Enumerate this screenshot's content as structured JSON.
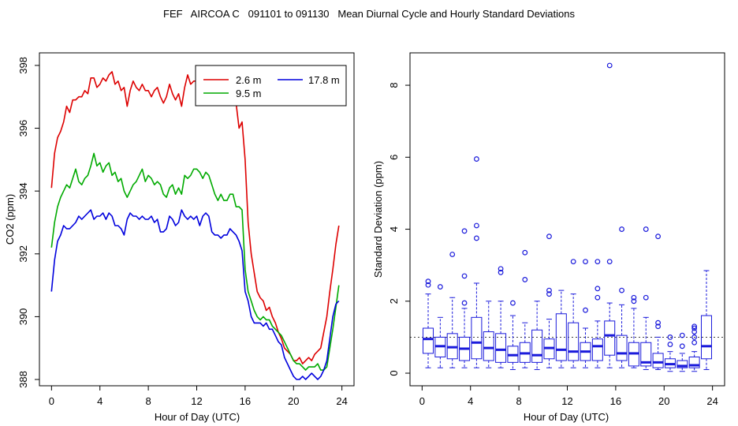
{
  "title": "FEF   AIRCOA C   091101 to 091130   Mean Diurnal Cycle and Hourly Standard Deviations",
  "chart_data": [
    {
      "type": "line",
      "xlabel": "Hour of Day (UTC)",
      "ylabel": "CO2 (ppm)",
      "xlim": [
        -1,
        25
      ],
      "ylim": [
        387.8,
        398.4
      ],
      "xticks": [
        0,
        4,
        8,
        12,
        16,
        20,
        24
      ],
      "yticks": [
        388,
        390,
        392,
        394,
        396,
        398
      ],
      "legend": {
        "position": "top-right",
        "entries": [
          "2.6 m",
          "9.5 m",
          "17.8 m"
        ]
      },
      "series": [
        {
          "name": "2.6 m",
          "color": "#dd0000",
          "x": [
            0,
            0.25,
            0.5,
            0.75,
            1,
            1.25,
            1.5,
            1.75,
            2,
            2.25,
            2.5,
            2.75,
            3,
            3.25,
            3.5,
            3.75,
            4,
            4.25,
            4.5,
            4.75,
            5,
            5.25,
            5.5,
            5.75,
            6,
            6.25,
            6.5,
            6.75,
            7,
            7.25,
            7.5,
            7.75,
            8,
            8.25,
            8.5,
            8.75,
            9,
            9.25,
            9.5,
            9.75,
            10,
            10.25,
            10.5,
            10.75,
            11,
            11.25,
            11.5,
            11.75,
            12,
            12.25,
            12.5,
            12.75,
            13,
            13.25,
            13.5,
            13.75,
            14,
            14.25,
            14.5,
            14.75,
            15,
            15.25,
            15.5,
            15.75,
            16,
            16.25,
            16.5,
            16.75,
            17,
            17.25,
            17.5,
            17.75,
            18,
            18.25,
            18.5,
            18.75,
            19,
            19.25,
            19.5,
            19.75,
            20,
            20.25,
            20.5,
            20.75,
            21,
            21.25,
            21.5,
            21.75,
            22,
            22.25,
            22.5,
            22.75,
            23,
            23.25,
            23.5,
            23.75
          ],
          "values": [
            394.1,
            395.2,
            395.7,
            395.9,
            396.2,
            396.7,
            396.5,
            396.9,
            396.9,
            397.0,
            397.0,
            397.2,
            397.1,
            397.6,
            397.6,
            397.3,
            397.4,
            397.6,
            397.5,
            397.7,
            397.8,
            397.4,
            397.5,
            397.2,
            397.3,
            396.7,
            397.2,
            397.5,
            397.3,
            397.2,
            397.4,
            397.2,
            397.2,
            397.0,
            397.2,
            397.3,
            397.0,
            396.8,
            397.0,
            397.4,
            397.1,
            396.9,
            397.1,
            396.7,
            397.3,
            397.7,
            397.4,
            397.5,
            397.5,
            397.7,
            397.6,
            397.7,
            397.6,
            397.3,
            397.0,
            396.8,
            397.0,
            396.8,
            396.9,
            397.2,
            397.1,
            396.8,
            396.0,
            396.2,
            395.0,
            393.0,
            392.0,
            391.4,
            390.8,
            390.6,
            390.5,
            390.2,
            390.3,
            390.0,
            389.8,
            389.5,
            389.3,
            389.0,
            388.9,
            388.8,
            388.6,
            388.6,
            388.7,
            388.5,
            388.6,
            388.7,
            388.6,
            388.8,
            388.9,
            389.0,
            389.5,
            390.0,
            390.8,
            391.5,
            392.3,
            392.9
          ]
        },
        {
          "name": "9.5 m",
          "color": "#00aa00",
          "x": [
            0,
            0.25,
            0.5,
            0.75,
            1,
            1.25,
            1.5,
            1.75,
            2,
            2.25,
            2.5,
            2.75,
            3,
            3.25,
            3.5,
            3.75,
            4,
            4.25,
            4.5,
            4.75,
            5,
            5.25,
            5.5,
            5.75,
            6,
            6.25,
            6.5,
            6.75,
            7,
            7.25,
            7.5,
            7.75,
            8,
            8.25,
            8.5,
            8.75,
            9,
            9.25,
            9.5,
            9.75,
            10,
            10.25,
            10.5,
            10.75,
            11,
            11.25,
            11.5,
            11.75,
            12,
            12.25,
            12.5,
            12.75,
            13,
            13.25,
            13.5,
            13.75,
            14,
            14.25,
            14.5,
            14.75,
            15,
            15.25,
            15.5,
            15.75,
            16,
            16.25,
            16.5,
            16.75,
            17,
            17.25,
            17.5,
            17.75,
            18,
            18.25,
            18.5,
            18.75,
            19,
            19.25,
            19.5,
            19.75,
            20,
            20.25,
            20.5,
            20.75,
            21,
            21.25,
            21.5,
            21.75,
            22,
            22.25,
            22.5,
            22.75,
            23,
            23.25,
            23.5,
            23.75
          ],
          "values": [
            392.2,
            393.0,
            393.5,
            393.8,
            394.0,
            394.2,
            394.1,
            394.4,
            394.7,
            394.3,
            394.2,
            394.4,
            394.5,
            394.8,
            395.2,
            394.8,
            394.9,
            394.6,
            394.8,
            394.9,
            394.5,
            394.6,
            394.3,
            394.4,
            394.0,
            393.8,
            394.0,
            394.2,
            394.3,
            394.5,
            394.7,
            394.3,
            394.5,
            394.4,
            394.2,
            394.3,
            394.2,
            393.9,
            393.8,
            394.1,
            394.2,
            393.9,
            394.1,
            393.9,
            394.5,
            394.4,
            394.5,
            394.7,
            394.7,
            394.6,
            394.4,
            394.6,
            394.5,
            394.2,
            393.9,
            393.7,
            393.9,
            393.7,
            393.7,
            393.9,
            393.9,
            393.5,
            393.5,
            393.4,
            391.5,
            390.8,
            390.5,
            390.2,
            390.0,
            389.9,
            390.0,
            389.9,
            389.9,
            389.7,
            389.6,
            389.5,
            389.4,
            389.2,
            389.0,
            388.8,
            388.6,
            388.5,
            388.5,
            388.4,
            388.3,
            388.4,
            388.4,
            388.4,
            388.5,
            388.3,
            388.3,
            388.4,
            389.0,
            389.6,
            390.3,
            391.0
          ]
        },
        {
          "name": "17.8 m",
          "color": "#0000dd",
          "x": [
            0,
            0.25,
            0.5,
            0.75,
            1,
            1.25,
            1.5,
            1.75,
            2,
            2.25,
            2.5,
            2.75,
            3,
            3.25,
            3.5,
            3.75,
            4,
            4.25,
            4.5,
            4.75,
            5,
            5.25,
            5.5,
            5.75,
            6,
            6.25,
            6.5,
            6.75,
            7,
            7.25,
            7.5,
            7.75,
            8,
            8.25,
            8.5,
            8.75,
            9,
            9.25,
            9.5,
            9.75,
            10,
            10.25,
            10.5,
            10.75,
            11,
            11.25,
            11.5,
            11.75,
            12,
            12.25,
            12.5,
            12.75,
            13,
            13.25,
            13.5,
            13.75,
            14,
            14.25,
            14.5,
            14.75,
            15,
            15.25,
            15.5,
            15.75,
            16,
            16.25,
            16.5,
            16.75,
            17,
            17.25,
            17.5,
            17.75,
            18,
            18.25,
            18.5,
            18.75,
            19,
            19.25,
            19.5,
            19.75,
            20,
            20.25,
            20.5,
            20.75,
            21,
            21.25,
            21.5,
            21.75,
            22,
            22.25,
            22.5,
            22.75,
            23,
            23.25,
            23.5,
            23.75
          ],
          "values": [
            390.8,
            391.8,
            392.4,
            392.6,
            392.9,
            392.8,
            392.8,
            392.9,
            393.0,
            393.2,
            393.1,
            393.2,
            393.3,
            393.4,
            393.1,
            393.2,
            393.2,
            393.3,
            393.1,
            393.3,
            393.2,
            392.9,
            392.9,
            392.8,
            392.6,
            393.1,
            393.3,
            393.2,
            393.2,
            393.1,
            393.2,
            393.1,
            393.1,
            393.2,
            393.0,
            393.1,
            392.7,
            392.7,
            392.8,
            393.2,
            393.1,
            392.9,
            393.0,
            393.4,
            393.2,
            393.1,
            393.2,
            393.1,
            393.2,
            392.9,
            393.2,
            393.3,
            393.2,
            392.7,
            392.6,
            392.6,
            392.5,
            392.6,
            392.6,
            392.8,
            392.7,
            392.6,
            392.4,
            392.1,
            390.8,
            390.5,
            390.0,
            389.8,
            389.8,
            389.8,
            389.7,
            389.8,
            389.6,
            389.6,
            389.4,
            389.2,
            389.1,
            388.7,
            388.5,
            388.3,
            388.1,
            388.0,
            388.0,
            388.1,
            388.0,
            388.1,
            388.2,
            388.1,
            388.0,
            388.1,
            388.3,
            388.6,
            389.3,
            390.0,
            390.4,
            390.5
          ]
        }
      ]
    },
    {
      "type": "box",
      "xlabel": "Hour of Day (UTC)",
      "ylabel": "Standard Deviation (ppm)",
      "xlim": [
        -1,
        25
      ],
      "ylim": [
        -0.35,
        8.9
      ],
      "xticks": [
        0,
        4,
        8,
        12,
        16,
        20,
        24
      ],
      "yticks": [
        0,
        2,
        4,
        6,
        8
      ],
      "reference_line": 1,
      "boxes": [
        {
          "hour": 0.5,
          "low": 0.15,
          "q1": 0.55,
          "median": 0.95,
          "q3": 1.25,
          "high": 2.2,
          "outliers": [
            2.45,
            2.55
          ]
        },
        {
          "hour": 1.5,
          "low": 0.15,
          "q1": 0.45,
          "median": 0.75,
          "q3": 1.0,
          "high": 1.55,
          "outliers": [
            2.4
          ]
        },
        {
          "hour": 2.5,
          "low": 0.15,
          "q1": 0.4,
          "median": 0.72,
          "q3": 1.1,
          "high": 2.1,
          "outliers": [
            3.3
          ]
        },
        {
          "hour": 3.5,
          "low": 0.15,
          "q1": 0.35,
          "median": 0.68,
          "q3": 1.0,
          "high": 1.8,
          "outliers": [
            1.95,
            2.7,
            3.95
          ]
        },
        {
          "hour": 4.5,
          "low": 0.15,
          "q1": 0.4,
          "median": 0.85,
          "q3": 1.55,
          "high": 2.5,
          "outliers": [
            3.75,
            4.1,
            5.95
          ]
        },
        {
          "hour": 5.5,
          "low": 0.15,
          "q1": 0.35,
          "median": 0.7,
          "q3": 1.15,
          "high": 2.0,
          "outliers": []
        },
        {
          "hour": 6.5,
          "low": 0.15,
          "q1": 0.3,
          "median": 0.65,
          "q3": 1.1,
          "high": 2.0,
          "outliers": [
            2.8,
            2.9
          ]
        },
        {
          "hour": 7.5,
          "low": 0.1,
          "q1": 0.3,
          "median": 0.5,
          "q3": 0.75,
          "high": 1.6,
          "outliers": [
            1.95
          ]
        },
        {
          "hour": 8.5,
          "low": 0.15,
          "q1": 0.3,
          "median": 0.55,
          "q3": 0.85,
          "high": 1.4,
          "outliers": [
            2.6,
            3.35
          ]
        },
        {
          "hour": 9.5,
          "low": 0.1,
          "q1": 0.3,
          "median": 0.5,
          "q3": 1.2,
          "high": 2.0,
          "outliers": []
        },
        {
          "hour": 10.5,
          "low": 0.15,
          "q1": 0.4,
          "median": 0.7,
          "q3": 0.95,
          "high": 1.5,
          "outliers": [
            2.2,
            2.3,
            3.8
          ]
        },
        {
          "hour": 11.5,
          "low": 0.15,
          "q1": 0.35,
          "median": 0.65,
          "q3": 1.65,
          "high": 2.3,
          "outliers": []
        },
        {
          "hour": 12.5,
          "low": 0.15,
          "q1": 0.35,
          "median": 0.6,
          "q3": 1.4,
          "high": 2.2,
          "outliers": [
            3.1
          ]
        },
        {
          "hour": 13.5,
          "low": 0.15,
          "q1": 0.35,
          "median": 0.6,
          "q3": 0.85,
          "high": 1.25,
          "outliers": [
            1.75,
            3.1
          ]
        },
        {
          "hour": 14.5,
          "low": 0.15,
          "q1": 0.35,
          "median": 0.75,
          "q3": 0.95,
          "high": 1.45,
          "outliers": [
            2.1,
            2.35,
            3.1
          ]
        },
        {
          "hour": 15.5,
          "low": 0.15,
          "q1": 0.5,
          "median": 1.05,
          "q3": 1.45,
          "high": 1.95,
          "outliers": [
            3.1,
            8.55
          ]
        },
        {
          "hour": 16.5,
          "low": 0.15,
          "q1": 0.35,
          "median": 0.55,
          "q3": 1.05,
          "high": 1.9,
          "outliers": [
            2.3,
            4.0
          ]
        },
        {
          "hour": 17.5,
          "low": 0.15,
          "q1": 0.2,
          "median": 0.55,
          "q3": 0.85,
          "high": 1.8,
          "outliers": [
            2.0,
            2.1
          ]
        },
        {
          "hour": 18.5,
          "low": 0.1,
          "q1": 0.2,
          "median": 0.3,
          "q3": 0.85,
          "high": 1.55,
          "outliers": [
            2.1,
            4.0
          ]
        },
        {
          "hour": 19.5,
          "low": 0.1,
          "q1": 0.15,
          "median": 0.3,
          "q3": 0.55,
          "high": 1.0,
          "outliers": [
            1.3,
            1.4,
            3.8
          ]
        },
        {
          "hour": 20.5,
          "low": 0.05,
          "q1": 0.15,
          "median": 0.25,
          "q3": 0.4,
          "high": 0.6,
          "outliers": [
            0.8,
            1.0
          ]
        },
        {
          "hour": 21.5,
          "low": 0.05,
          "q1": 0.15,
          "median": 0.2,
          "q3": 0.35,
          "high": 0.55,
          "outliers": [
            0.75,
            1.05
          ]
        },
        {
          "hour": 22.5,
          "low": 0.05,
          "q1": 0.15,
          "median": 0.22,
          "q3": 0.45,
          "high": 0.6,
          "outliers": [
            0.85,
            1.0,
            1.15,
            1.25,
            1.3
          ]
        },
        {
          "hour": 23.5,
          "low": 0.1,
          "q1": 0.4,
          "median": 0.75,
          "q3": 1.6,
          "high": 2.85,
          "outliers": []
        }
      ]
    }
  ]
}
